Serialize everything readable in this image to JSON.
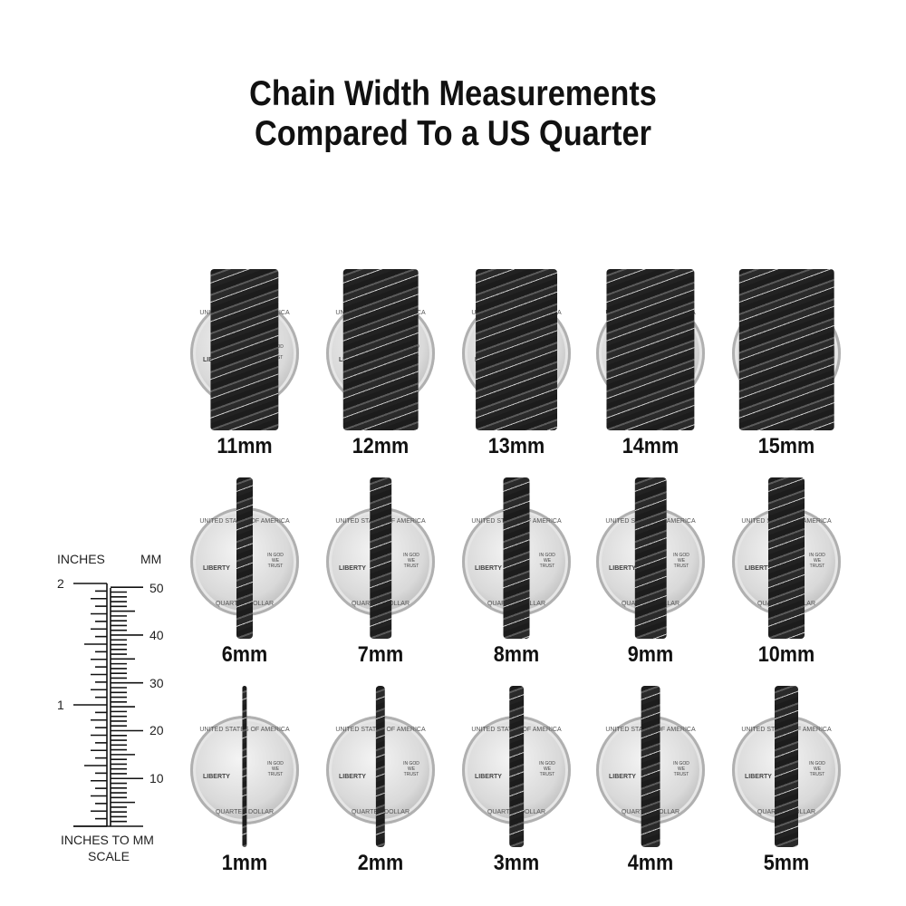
{
  "title_line1": "Chain Width Measurements",
  "title_line2": "Compared To a US Quarter",
  "coin_text": {
    "top": "UNITED STATES OF AMERICA",
    "left": "LIBERTY",
    "right": "IN GOD WE TRUST",
    "bottom": "QUARTER DOLLAR"
  },
  "chain_color": "#222222",
  "rows": [
    [
      {
        "label": "11mm",
        "mm": 11
      },
      {
        "label": "12mm",
        "mm": 12
      },
      {
        "label": "13mm",
        "mm": 13
      },
      {
        "label": "14mm",
        "mm": 14
      },
      {
        "label": "15mm",
        "mm": 15
      }
    ],
    [
      {
        "label": "6mm",
        "mm": 6
      },
      {
        "label": "7mm",
        "mm": 7
      },
      {
        "label": "8mm",
        "mm": 8
      },
      {
        "label": "9mm",
        "mm": 9
      },
      {
        "label": "10mm",
        "mm": 10
      }
    ],
    [
      {
        "label": "1mm",
        "mm": 1
      },
      {
        "label": "2mm",
        "mm": 2
      },
      {
        "label": "3mm",
        "mm": 3
      },
      {
        "label": "4mm",
        "mm": 4
      },
      {
        "label": "5mm",
        "mm": 5
      }
    ]
  ],
  "scale": {
    "inches_header": "INCHES",
    "mm_header": "MM",
    "inch_labels": [
      "1",
      "2"
    ],
    "mm_labels": [
      "10",
      "20",
      "30",
      "40",
      "50"
    ],
    "caption_line1": "INCHES TO MM",
    "caption_line2": "SCALE"
  }
}
